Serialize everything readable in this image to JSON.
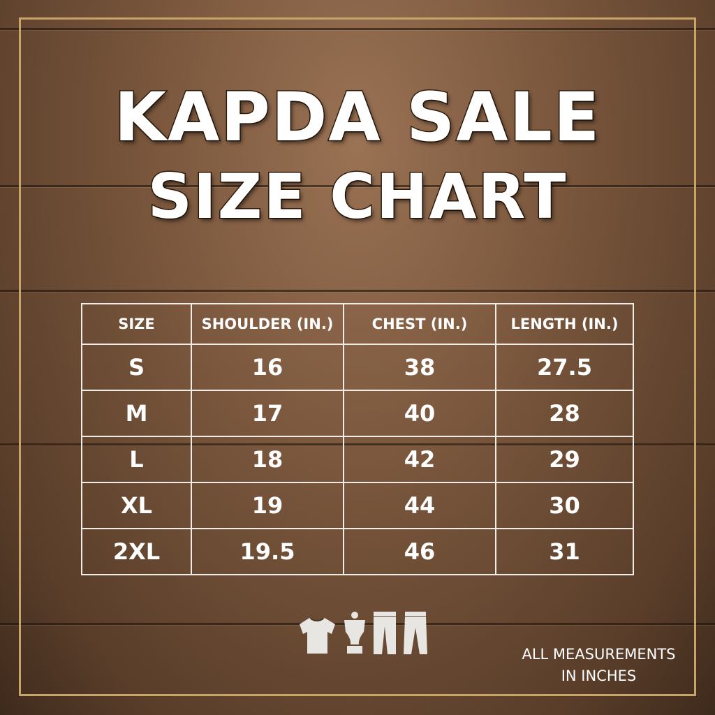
{
  "title_line1": "KAPDA SALE",
  "title_line2": "SIZE CHART",
  "table": {
    "headers": [
      "SIZE",
      "SHOULDER (IN.)",
      "CHEST (IN.)",
      "LENGTH (IN.)"
    ],
    "rows": [
      [
        "S",
        "16",
        "38",
        "27.5"
      ],
      [
        "M",
        "17",
        "40",
        "28"
      ],
      [
        "L",
        "18",
        "42",
        "29"
      ],
      [
        "XL",
        "19",
        "44",
        "30"
      ],
      [
        "2XL",
        "19.5",
        "46",
        "31"
      ]
    ]
  },
  "icons": [
    "tshirt-icon",
    "kurta-icon",
    "trousers-icon",
    "pants-icon"
  ],
  "note_line1": "ALL MEASUREMENTS",
  "note_line2": "IN INCHES",
  "colors": {
    "frame": "#c9a46a",
    "text": "#ffffff",
    "wood": "#7a573d"
  }
}
